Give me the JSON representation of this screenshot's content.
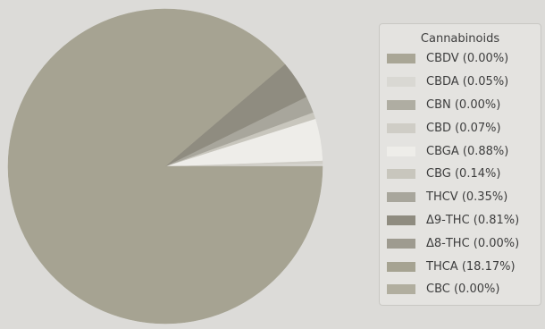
{
  "chart_data": {
    "type": "pie",
    "legend_title": "Cannabinoids",
    "legend_position": "right",
    "slices": [
      {
        "label": "CBDV (0.00%)",
        "value": 0.0,
        "color": "#a9a696"
      },
      {
        "label": "CBDA (0.05%)",
        "value": 0.05,
        "color": "#d9d8d3"
      },
      {
        "label": "CBN (0.00%)",
        "value": 0.0,
        "color": "#afada2"
      },
      {
        "label": "CBD (0.07%)",
        "value": 0.07,
        "color": "#cfcdc6"
      },
      {
        "label": "CBGA (0.88%)",
        "value": 0.88,
        "color": "#eeede9"
      },
      {
        "label": "CBG (0.14%)",
        "value": 0.14,
        "color": "#c8c6bd"
      },
      {
        "label": "THCV (0.35%)",
        "value": 0.35,
        "color": "#a8a69c"
      },
      {
        "label": "Δ9-THC (0.81%)",
        "value": 0.81,
        "color": "#8f8c80"
      },
      {
        "label": "Δ8-THC (0.00%)",
        "value": 0.0,
        "color": "#9e9b90"
      },
      {
        "label": "THCA (18.17%)",
        "value": 18.17,
        "color": "#a6a392"
      },
      {
        "label": "CBC (0.00%)",
        "value": 0.0,
        "color": "#b1ae9f"
      }
    ]
  }
}
